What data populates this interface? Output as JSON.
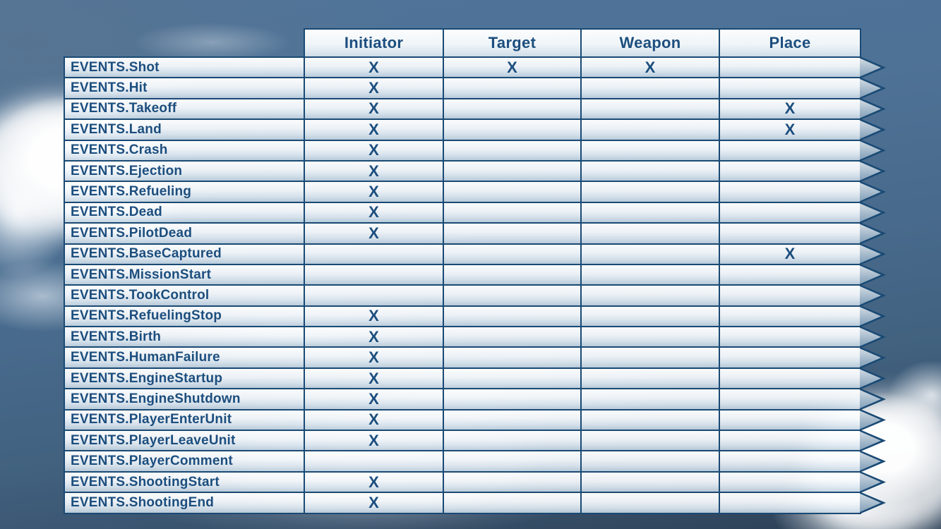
{
  "colors": {
    "table_line": "#1a4a74",
    "table_text": "#1c4e7e"
  },
  "table": {
    "columns": [
      "Initiator",
      "Target",
      "Weapon",
      "Place"
    ],
    "rows": [
      {
        "label": "EVENTS.Shot",
        "marks": [
          "X",
          "X",
          "X",
          ""
        ]
      },
      {
        "label": "EVENTS.Hit",
        "marks": [
          "X",
          "",
          "",
          ""
        ]
      },
      {
        "label": "EVENTS.Takeoff",
        "marks": [
          "X",
          "",
          "",
          "X"
        ]
      },
      {
        "label": "EVENTS.Land",
        "marks": [
          "X",
          "",
          "",
          "X"
        ]
      },
      {
        "label": "EVENTS.Crash",
        "marks": [
          "X",
          "",
          "",
          ""
        ]
      },
      {
        "label": "EVENTS.Ejection",
        "marks": [
          "X",
          "",
          "",
          ""
        ]
      },
      {
        "label": "EVENTS.Refueling",
        "marks": [
          "X",
          "",
          "",
          ""
        ]
      },
      {
        "label": "EVENTS.Dead",
        "marks": [
          "X",
          "",
          "",
          ""
        ]
      },
      {
        "label": "EVENTS.PilotDead",
        "marks": [
          "X",
          "",
          "",
          ""
        ]
      },
      {
        "label": "EVENTS.BaseCaptured",
        "marks": [
          "",
          "",
          "",
          "X"
        ]
      },
      {
        "label": "EVENTS.MissionStart",
        "marks": [
          "",
          "",
          "",
          ""
        ]
      },
      {
        "label": "EVENTS.TookControl",
        "marks": [
          "",
          "",
          "",
          ""
        ]
      },
      {
        "label": "EVENTS.RefuelingStop",
        "marks": [
          "X",
          "",
          "",
          ""
        ]
      },
      {
        "label": "EVENTS.Birth",
        "marks": [
          "X",
          "",
          "",
          ""
        ]
      },
      {
        "label": "EVENTS.HumanFailure",
        "marks": [
          "X",
          "",
          "",
          ""
        ]
      },
      {
        "label": "EVENTS.EngineStartup",
        "marks": [
          "X",
          "",
          "",
          ""
        ]
      },
      {
        "label": "EVENTS.EngineShutdown",
        "marks": [
          "X",
          "",
          "",
          ""
        ]
      },
      {
        "label": "EVENTS.PlayerEnterUnit",
        "marks": [
          "X",
          "",
          "",
          ""
        ]
      },
      {
        "label": "EVENTS.PlayerLeaveUnit",
        "marks": [
          "X",
          "",
          "",
          ""
        ]
      },
      {
        "label": "EVENTS.PlayerComment",
        "marks": [
          "",
          "",
          "",
          ""
        ]
      },
      {
        "label": "EVENTS.ShootingStart",
        "marks": [
          "X",
          "",
          "",
          ""
        ]
      },
      {
        "label": "EVENTS.ShootingEnd",
        "marks": [
          "X",
          "",
          "",
          ""
        ]
      }
    ]
  }
}
